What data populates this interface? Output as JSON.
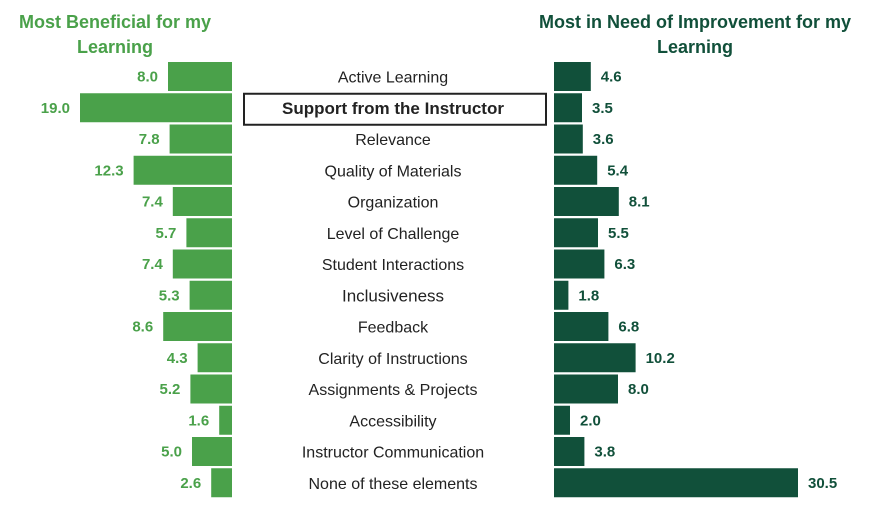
{
  "chart_data": {
    "type": "bar",
    "layout": "diverging-paired-horizontal",
    "categories": [
      "Active Learning",
      "Support from the Instructor",
      "Relevance",
      "Quality of Materials",
      "Organization",
      "Level of Challenge",
      "Student Interactions",
      "Inclusiveness",
      "Feedback",
      "Clarity of Instructions",
      "Assignments & Projects",
      "Accessibility",
      "Instructor Communication",
      "None of these elements"
    ],
    "highlighted_category": "Support from the Instructor",
    "series": [
      {
        "name": "Most Beneficial for my Learning",
        "color": "#4aa14a",
        "values": [
          8.0,
          19.0,
          7.8,
          12.3,
          7.4,
          5.7,
          7.4,
          5.3,
          8.6,
          4.3,
          5.2,
          1.6,
          5.0,
          2.6
        ],
        "labels": [
          "8.0",
          "19.0",
          "7.8",
          "12.3",
          "7.4",
          "5.7",
          "7.4",
          "5.3",
          "8.6",
          "4.3",
          "5.2",
          "1.6",
          "5.0",
          "2.6"
        ]
      },
      {
        "name": "Most in Need of Improvement for my Learning",
        "color": "#11503a",
        "values": [
          4.6,
          3.5,
          3.6,
          5.4,
          8.1,
          5.5,
          6.3,
          1.8,
          6.8,
          10.2,
          8.0,
          2.0,
          3.8,
          30.5
        ],
        "labels": [
          "4.6",
          "3.5",
          "3.6",
          "5.4",
          "8.1",
          "5.5",
          "6.3",
          "1.8",
          "6.8",
          "10.2",
          "8.0",
          "2.0",
          "3.8",
          "30.5"
        ]
      }
    ],
    "title_left": "Most Beneficial for my Learning",
    "title_right": "Most in Need of Improvement for my Learning",
    "grid": false
  }
}
